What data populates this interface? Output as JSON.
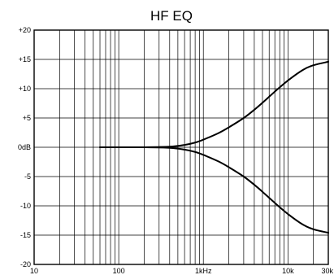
{
  "chart_data": {
    "type": "line",
    "title": "HF EQ",
    "x_scale": "log",
    "xlim": [
      10,
      30000
    ],
    "ylim": [
      -20,
      20
    ],
    "grid": true,
    "legend": "none",
    "y_ticks": [
      {
        "value": 20,
        "label": "+20"
      },
      {
        "value": 15,
        "label": "+15"
      },
      {
        "value": 10,
        "label": "+10"
      },
      {
        "value": 5,
        "label": "+5"
      },
      {
        "value": 0,
        "label": "0dB"
      },
      {
        "value": -5,
        "label": "-5"
      },
      {
        "value": -10,
        "label": "-10"
      },
      {
        "value": -15,
        "label": "-15"
      },
      {
        "value": -20,
        "label": "-20"
      }
    ],
    "x_ticks": [
      {
        "value": 10,
        "label": "10"
      },
      {
        "value": 100,
        "label": "100"
      },
      {
        "value": 1000,
        "label": "1kHz"
      },
      {
        "value": 10000,
        "label": "10k"
      },
      {
        "value": 30000,
        "label": "30k"
      }
    ],
    "series": [
      {
        "x": [
          60,
          100,
          200,
          400,
          600,
          800,
          1000,
          1500,
          2000,
          3000,
          4000,
          5000,
          7000,
          10000,
          15000,
          20000,
          30000
        ],
        "y": [
          0,
          0,
          0,
          0.1,
          0.4,
          0.8,
          1.3,
          2.4,
          3.4,
          5.0,
          6.4,
          7.6,
          9.5,
          11.4,
          13.2,
          14.0,
          14.6
        ]
      },
      {
        "x": [
          60,
          100,
          200,
          400,
          600,
          800,
          1000,
          1500,
          2000,
          3000,
          4000,
          5000,
          7000,
          10000,
          15000,
          20000,
          30000
        ],
        "y": [
          0,
          0,
          0,
          -0.1,
          -0.4,
          -0.8,
          -1.3,
          -2.4,
          -3.4,
          -5.0,
          -6.4,
          -7.6,
          -9.5,
          -11.4,
          -13.2,
          -14.0,
          -14.6
        ]
      }
    ]
  }
}
